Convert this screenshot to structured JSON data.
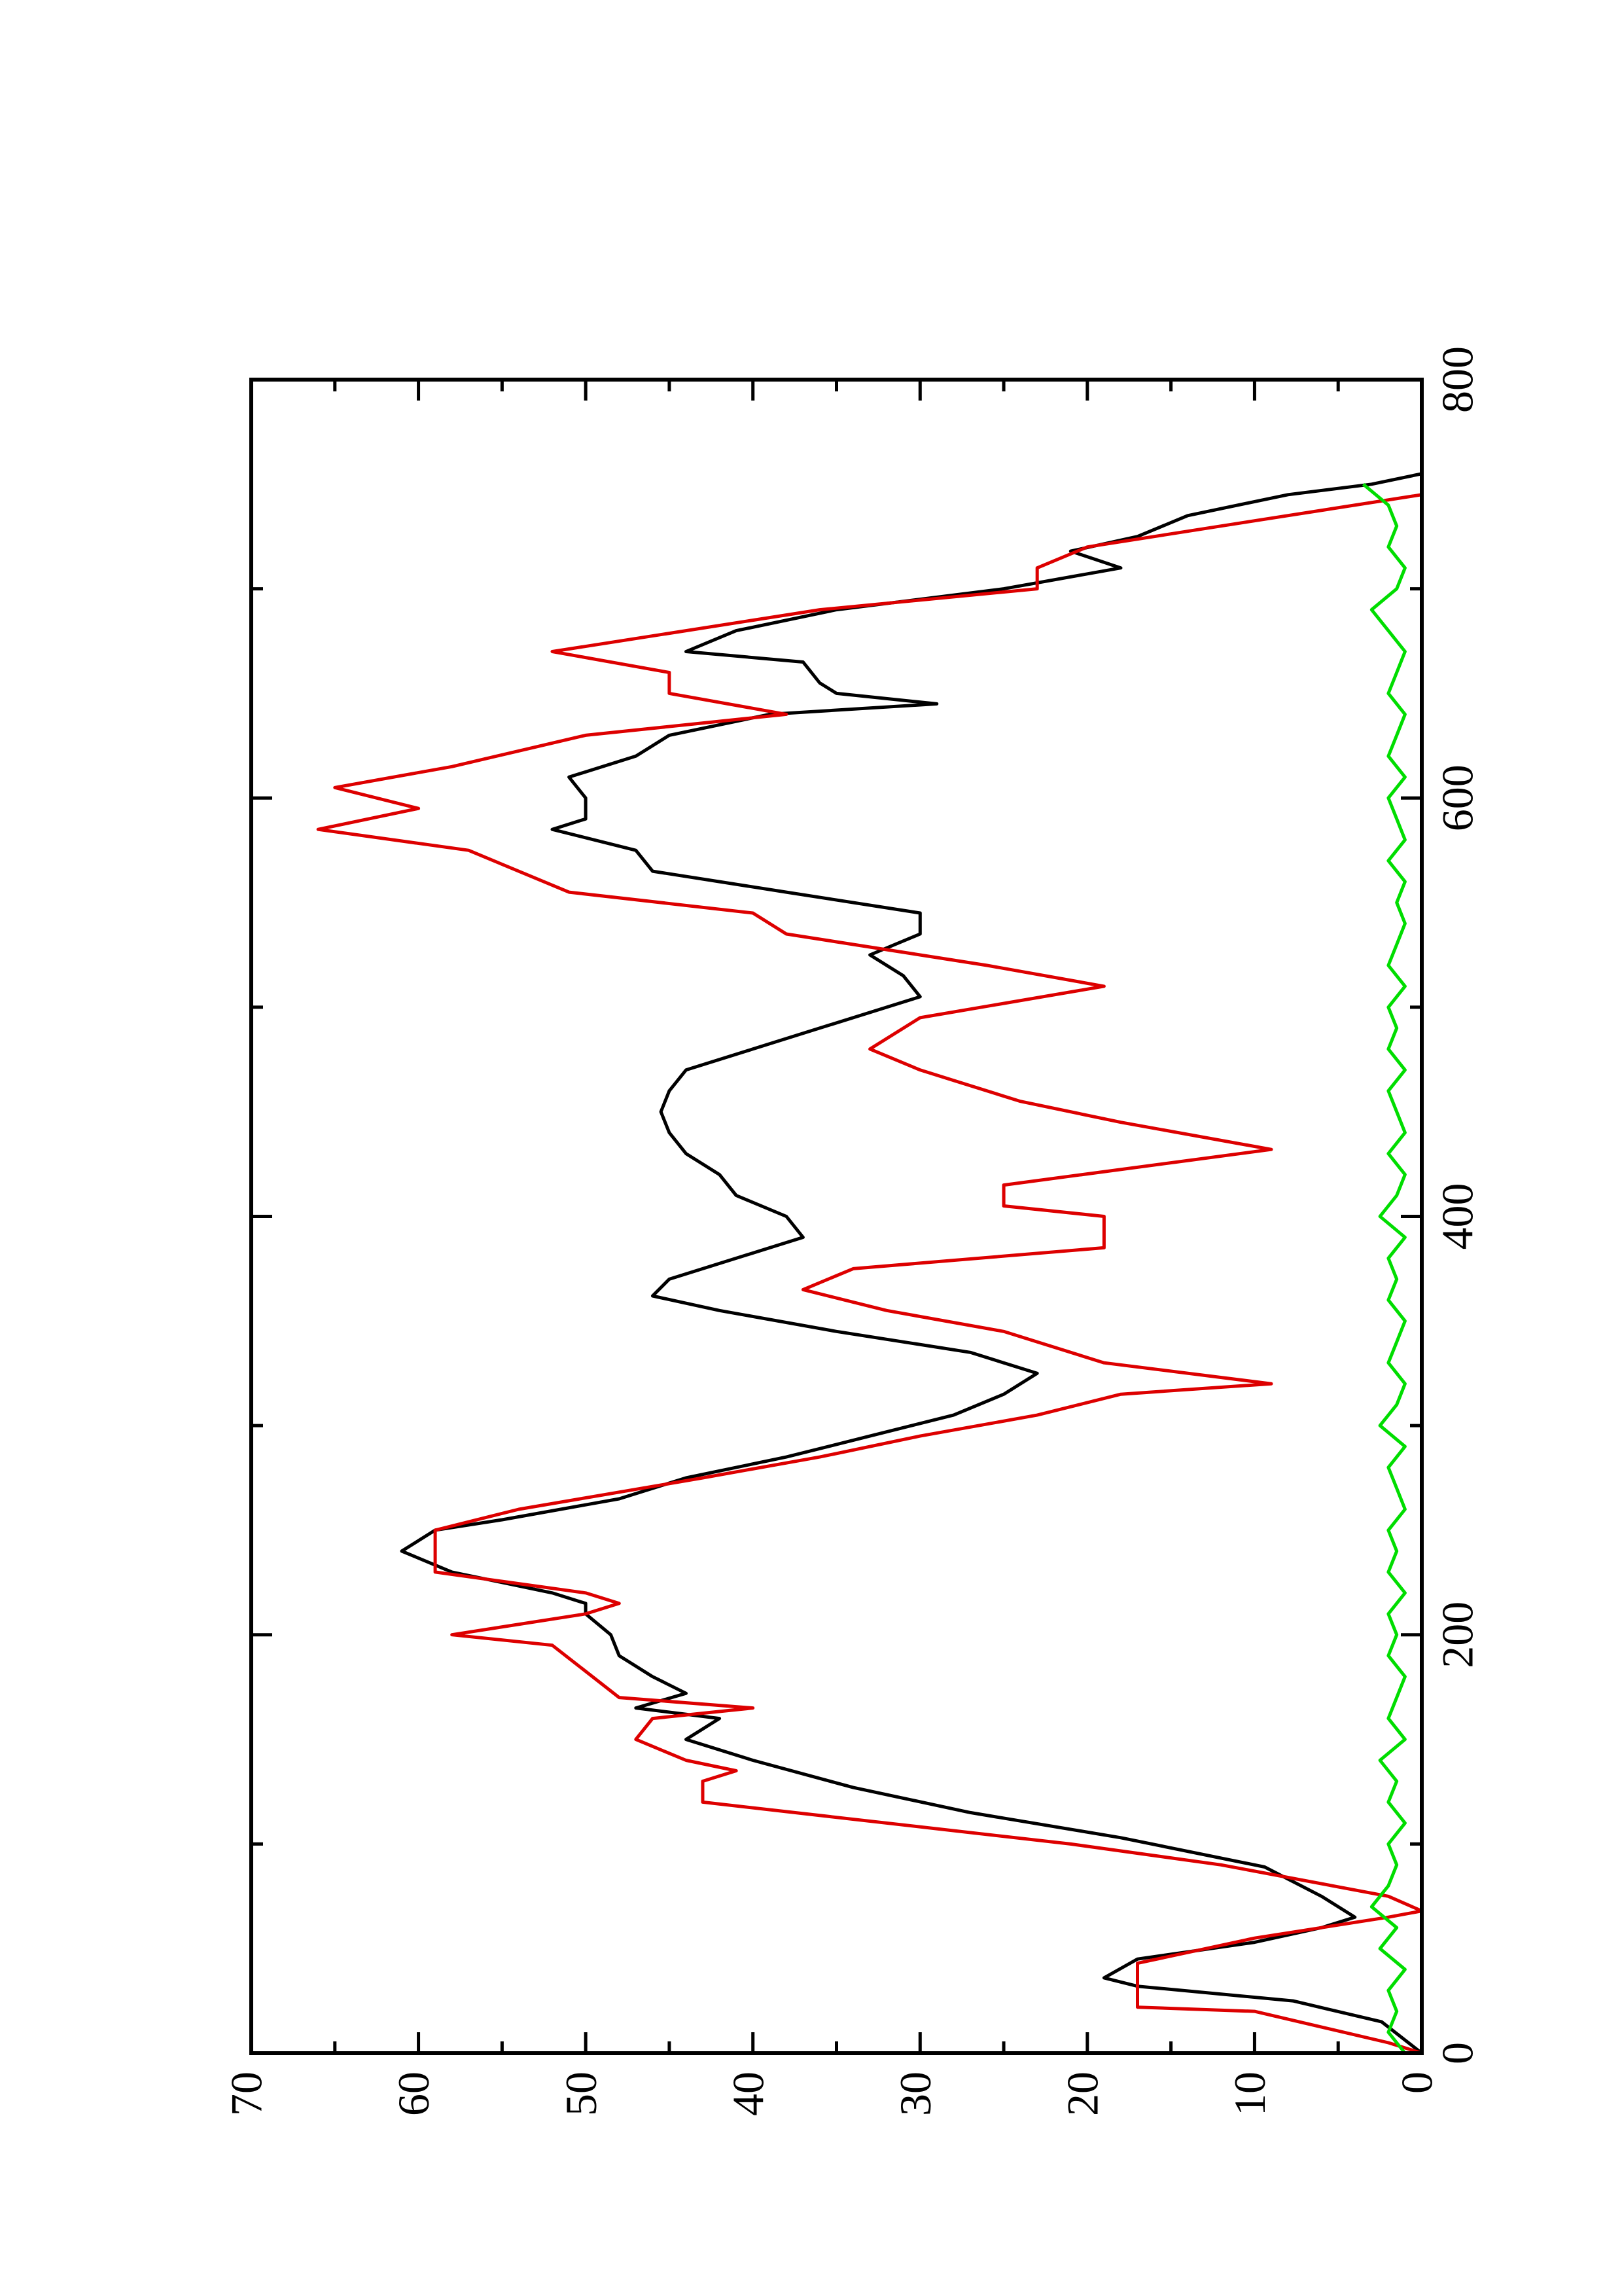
{
  "chart_data": {
    "type": "line",
    "rotated": true,
    "xlim": [
      0,
      800
    ],
    "xticks": [
      0,
      200,
      400,
      600,
      800
    ],
    "xminorticks": [
      100,
      300,
      500,
      700
    ],
    "ylim": [
      0,
      70
    ],
    "yticks": [
      0,
      10,
      20,
      30,
      40,
      50,
      60,
      70
    ],
    "yminorticks": [
      5,
      15,
      25,
      35,
      45,
      55,
      65
    ],
    "series": [
      {
        "color": "#000000",
        "x": [
          0,
          15,
          25,
          32,
          36,
          45,
          53,
          60,
          65,
          75,
          89,
          103,
          115,
          127,
          140,
          150,
          160,
          165,
          172,
          180,
          190,
          200,
          210,
          215,
          220,
          230,
          240,
          245,
          250,
          255,
          265,
          275,
          285,
          295,
          305,
          315,
          325,
          335,
          345,
          355,
          362,
          370,
          380,
          390,
          400,
          410,
          420,
          430,
          440,
          450,
          460,
          470,
          480,
          490,
          500,
          505,
          515,
          525,
          535,
          545,
          555,
          565,
          575,
          585,
          590,
          600,
          610,
          620,
          630,
          640,
          645,
          650,
          655,
          665,
          670,
          680,
          690,
          700,
          710,
          718,
          725,
          735,
          745,
          750,
          755
        ],
        "values": [
          0,
          2.4,
          7.7,
          17,
          19,
          17,
          10,
          6,
          4,
          6,
          9.4,
          18,
          27,
          34,
          40,
          44,
          42,
          47,
          44,
          46,
          48,
          48.5,
          50,
          50,
          52,
          58,
          61,
          60,
          59,
          55,
          48,
          44,
          38,
          33,
          28,
          25,
          23,
          27,
          35,
          42,
          46,
          45,
          41,
          37,
          38,
          41,
          42,
          44,
          45,
          45.5,
          45,
          44,
          40,
          36,
          32,
          30,
          31,
          33,
          30,
          30,
          38,
          46,
          47,
          52,
          50,
          50,
          51,
          47,
          45,
          39,
          29,
          35,
          36,
          37,
          44,
          41,
          35,
          25,
          18,
          21,
          17,
          14,
          8,
          3,
          0
        ]
      },
      {
        "color": "#dd0000",
        "x": [
          0,
          5,
          20,
          22,
          43,
          55,
          65,
          68,
          75,
          90,
          100,
          120,
          130,
          135,
          140,
          150,
          160,
          165,
          170,
          195,
          200,
          210,
          215,
          220,
          230,
          250,
          260,
          275,
          285,
          295,
          305,
          315,
          320,
          330,
          345,
          355,
          365,
          375,
          385,
          400,
          405,
          415,
          432,
          445,
          455,
          470,
          480,
          495,
          510,
          520,
          535,
          545,
          555,
          575,
          585,
          595,
          605,
          615,
          630,
          640,
          650,
          660,
          670,
          680,
          690,
          700,
          710,
          720,
          730,
          745
        ],
        "values": [
          0,
          2,
          10,
          17,
          17,
          10,
          2,
          0,
          2,
          12,
          21,
          43,
          43,
          41,
          44,
          47,
          46,
          40,
          48,
          52,
          58,
          50,
          48,
          50,
          59,
          59,
          54,
          43,
          36,
          30,
          23,
          18,
          9,
          19,
          25,
          32,
          37,
          34,
          19,
          19,
          25,
          25,
          9,
          18,
          24,
          30,
          33,
          30,
          19,
          26,
          38,
          40,
          51,
          57,
          66,
          60,
          65,
          58,
          50,
          38,
          45,
          45,
          52,
          44,
          36,
          23,
          23,
          20,
          12,
          0
        ]
      },
      {
        "color": "#00dd00",
        "x": [
          0,
          10,
          20,
          30,
          40,
          50,
          60,
          70,
          80,
          90,
          100,
          110,
          120,
          130,
          140,
          150,
          160,
          170,
          180,
          190,
          200,
          210,
          220,
          230,
          240,
          250,
          260,
          270,
          280,
          290,
          300,
          310,
          320,
          330,
          340,
          350,
          360,
          370,
          380,
          390,
          400,
          410,
          420,
          430,
          440,
          450,
          460,
          470,
          480,
          490,
          500,
          510,
          520,
          530,
          540,
          550,
          560,
          570,
          580,
          590,
          600,
          610,
          620,
          630,
          640,
          650,
          660,
          670,
          680,
          690,
          700,
          710,
          720,
          730,
          740,
          750
        ],
        "values": [
          1,
          2,
          1.5,
          2,
          1,
          2.5,
          1.5,
          3,
          2,
          1.5,
          2,
          1,
          2,
          1.5,
          2.5,
          1,
          2,
          1.5,
          1,
          2,
          1.5,
          2,
          1,
          2,
          1.5,
          2,
          1,
          1.5,
          2,
          1,
          2.5,
          1.5,
          1,
          2,
          1.5,
          1,
          2,
          1.5,
          2,
          1,
          2.5,
          1.5,
          1,
          2,
          1,
          1.5,
          2,
          1,
          2,
          1.5,
          2,
          1,
          2,
          1.5,
          1,
          1.5,
          1,
          2,
          1,
          1.5,
          2,
          1,
          2,
          1.5,
          1,
          2,
          1.5,
          1,
          2,
          3,
          1.5,
          1,
          2,
          1.5,
          2,
          3.5
        ]
      }
    ]
  }
}
